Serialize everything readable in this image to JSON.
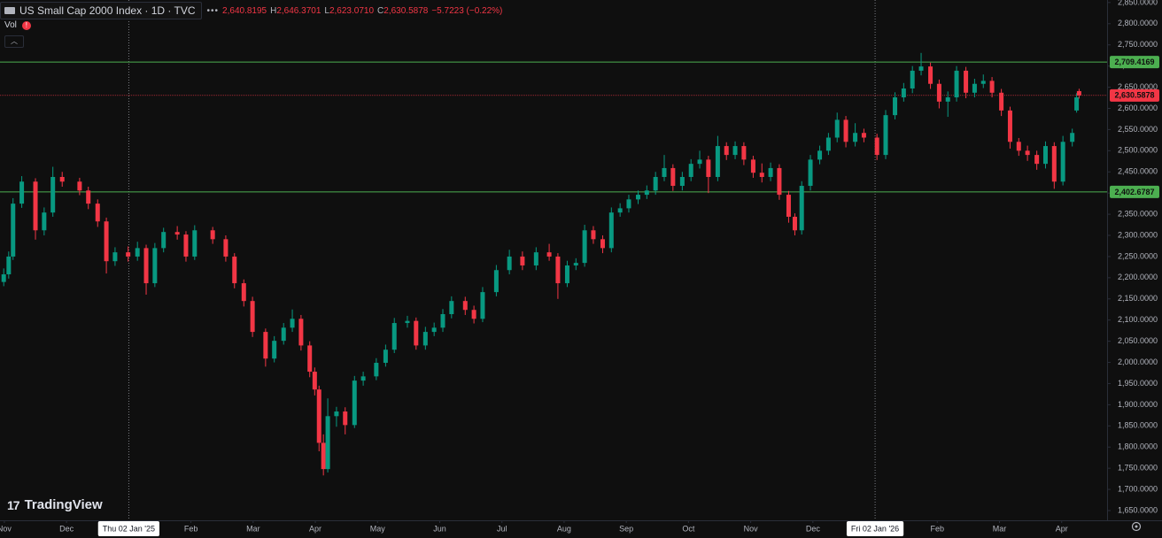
{
  "chart_data": {
    "type": "candlestick",
    "header": {
      "symbol": "US Small Cap 2000 Index · 1D · TVC",
      "ohlc": [
        {
          "value": "2,640.8195"
        },
        {
          "key": "H",
          "value": "2,646.3701"
        },
        {
          "key": "L",
          "value": "2,623.0710"
        },
        {
          "key": "C",
          "value": "2,630.5878"
        }
      ],
      "change": "−5.7223 (−0.22%)",
      "vol": "Vol"
    },
    "branding": "TradingView",
    "up_color": "#089981",
    "down_color": "#f23645",
    "xlim": [
      -0.07,
      17.73
    ],
    "xticks": [
      {
        "value": 0,
        "label": "Nov"
      },
      {
        "value": 1,
        "label": "Dec"
      },
      {
        "value": 2,
        "label": "Thu 02 Jan '25",
        "highlight": true
      },
      {
        "value": 3,
        "label": "Feb"
      },
      {
        "value": 4,
        "label": "Mar"
      },
      {
        "value": 5,
        "label": "Apr"
      },
      {
        "value": 6,
        "label": "May"
      },
      {
        "value": 7,
        "label": "Jun"
      },
      {
        "value": 8,
        "label": "Jul"
      },
      {
        "value": 9,
        "label": "Aug"
      },
      {
        "value": 10,
        "label": "Sep"
      },
      {
        "value": 11,
        "label": "Oct"
      },
      {
        "value": 12,
        "label": "Nov"
      },
      {
        "value": 13,
        "label": "Dec"
      },
      {
        "value": 14,
        "label": "Fri 02 Jan '26",
        "highlight": true
      },
      {
        "value": 15,
        "label": "Feb"
      },
      {
        "value": 16,
        "label": "Mar"
      },
      {
        "value": 17,
        "label": "Apr"
      }
    ],
    "ylim": [
      1627,
      2856
    ],
    "yticks": [
      {
        "value": 1650,
        "label": "1,650.0000"
      },
      {
        "value": 1700,
        "label": "1,700.0000"
      },
      {
        "value": 1750,
        "label": "1,750.0000"
      },
      {
        "value": 1800,
        "label": "1,800.0000"
      },
      {
        "value": 1850,
        "label": "1,850.0000"
      },
      {
        "value": 1900,
        "label": "1,900.0000"
      },
      {
        "value": 1950,
        "label": "1,950.0000"
      },
      {
        "value": 2000,
        "label": "2,000.0000"
      },
      {
        "value": 2050,
        "label": "2,050.0000"
      },
      {
        "value": 2100,
        "label": "2,100.0000"
      },
      {
        "value": 2150,
        "label": "2,150.0000"
      },
      {
        "value": 2200,
        "label": "2,200.0000"
      },
      {
        "value": 2250,
        "label": "2,250.0000"
      },
      {
        "value": 2300,
        "label": "2,300.0000"
      },
      {
        "value": 2350,
        "label": "2,350.0000"
      },
      {
        "value": 2400,
        "label": "2,400.0000"
      },
      {
        "value": 2450,
        "label": "2,450.0000"
      },
      {
        "value": 2500,
        "label": "2,500.0000"
      },
      {
        "value": 2550,
        "label": "2,550.0000"
      },
      {
        "value": 2600,
        "label": "2,600.0000"
      },
      {
        "value": 2650,
        "label": "2,650.0000"
      },
      {
        "value": 2700,
        "label": "2,700.0000"
      },
      {
        "value": 2750,
        "label": "2,750.0000"
      },
      {
        "value": 2800,
        "label": "2,800.0000"
      },
      {
        "value": 2850,
        "label": "2,850.0000"
      }
    ],
    "hlines": [
      {
        "value": 2709.4169,
        "label": "2,709.4169",
        "color": "#4caf50"
      },
      {
        "value": 2402.6787,
        "label": "2,402.6787",
        "color": "#4caf50"
      },
      {
        "value": 2630.5878,
        "label": "2,630.5878",
        "color": "#f23645",
        "dashed": true
      }
    ],
    "x": [
      -0.01,
      0.07,
      0.14,
      0.28,
      0.5,
      0.64,
      0.78,
      0.93,
      1.21,
      1.35,
      1.5,
      1.64,
      1.78,
      1.99,
      2.14,
      2.28,
      2.42,
      2.56,
      2.78,
      2.92,
      3.06,
      3.35,
      3.56,
      3.7,
      3.85,
      3.99,
      4.2,
      4.34,
      4.49,
      4.63,
      4.77,
      4.91,
      4.99,
      5.06,
      5.13,
      5.2,
      5.34,
      5.48,
      5.63,
      5.77,
      5.98,
      6.13,
      6.27,
      6.48,
      6.62,
      6.77,
      6.91,
      7.05,
      7.19,
      7.41,
      7.55,
      7.69,
      7.91,
      8.12,
      8.33,
      8.55,
      8.76,
      8.9,
      9.05,
      9.19,
      9.33,
      9.47,
      9.62,
      9.76,
      9.9,
      10.04,
      10.19,
      10.33,
      10.47,
      10.61,
      10.75,
      10.9,
      11.04,
      11.18,
      11.32,
      11.47,
      11.61,
      11.75,
      11.89,
      12.04,
      12.18,
      12.32,
      12.46,
      12.61,
      12.71,
      12.82,
      12.96,
      13.11,
      13.25,
      13.39,
      13.53,
      13.68,
      13.82,
      14.03,
      14.17,
      14.32,
      14.46,
      14.6,
      14.74,
      14.89,
      15.03,
      15.17,
      15.31,
      15.46,
      15.6,
      15.74,
      15.88,
      16.03,
      16.17,
      16.31,
      16.45,
      16.6,
      16.74,
      16.88,
      17.02,
      17.17,
      17.24,
      17.28
    ],
    "open": [
      2190,
      2208,
      2250,
      2375,
      2427,
      2312,
      2354,
      2438,
      2427,
      2406,
      2375,
      2333,
      2239,
      2260,
      2250,
      2270,
      2187,
      2270,
      2308,
      2302,
      2250,
      2312,
      2291,
      2250,
      2187,
      2145,
      2072,
      2009,
      2051,
      2082,
      2103,
      2040,
      1978,
      1936,
      1810,
      1748,
      1873,
      1884,
      1852,
      1957,
      1967,
      1999,
      2030,
      2093,
      2098,
      2040,
      2072,
      2082,
      2114,
      2145,
      2124,
      2103,
      2166,
      2218,
      2250,
      2229,
      2260,
      2250,
      2187,
      2229,
      2235,
      2312,
      2291,
      2270,
      2354,
      2364,
      2385,
      2396,
      2406,
      2438,
      2459,
      2417,
      2438,
      2469,
      2479,
      2438,
      2511,
      2490,
      2511,
      2479,
      2448,
      2438,
      2459,
      2396,
      2344,
      2312,
      2417,
      2479,
      2500,
      2531,
      2573,
      2521,
      2542,
      2531,
      2490,
      2584,
      2626,
      2647,
      2689,
      2699,
      2658,
      2616,
      2626,
      2689,
      2637,
      2658,
      2665,
      2637,
      2595,
      2521,
      2500,
      2490,
      2469,
      2511,
      2427,
      2521,
      2595,
      2640.8195
    ],
    "high": [
      2222,
      2262,
      2388,
      2440,
      2435,
      2366,
      2462,
      2450,
      2436,
      2415,
      2385,
      2342,
      2272,
      2274,
      2285,
      2278,
      2282,
      2318,
      2322,
      2310,
      2324,
      2320,
      2300,
      2258,
      2196,
      2155,
      2080,
      2062,
      2093,
      2125,
      2112,
      2050,
      1988,
      1945,
      1830,
      1915,
      1895,
      1894,
      1968,
      1978,
      2010,
      2042,
      2105,
      2110,
      2106,
      2084,
      2094,
      2126,
      2156,
      2155,
      2134,
      2178,
      2230,
      2266,
      2262,
      2272,
      2280,
      2258,
      2240,
      2246,
      2325,
      2322,
      2300,
      2366,
      2376,
      2396,
      2406,
      2418,
      2450,
      2490,
      2468,
      2450,
      2480,
      2500,
      2488,
      2535,
      2520,
      2522,
      2520,
      2488,
      2470,
      2472,
      2468,
      2405,
      2352,
      2428,
      2490,
      2512,
      2542,
      2590,
      2582,
      2565,
      2552,
      2540,
      2596,
      2638,
      2660,
      2700,
      2731,
      2708,
      2668,
      2640,
      2700,
      2698,
      2670,
      2680,
      2674,
      2646,
      2604,
      2530,
      2512,
      2500,
      2522,
      2520,
      2535,
      2552,
      2636,
      2646.3701
    ],
    "low": [
      2180,
      2198,
      2242,
      2365,
      2290,
      2300,
      2344,
      2415,
      2395,
      2362,
      2320,
      2210,
      2228,
      2238,
      2240,
      2160,
      2178,
      2260,
      2290,
      2238,
      2242,
      2280,
      2238,
      2175,
      2132,
      2060,
      1990,
      2000,
      2042,
      2072,
      2028,
      1965,
      1922,
      1790,
      1733,
      1740,
      1848,
      1830,
      1845,
      1945,
      1958,
      1990,
      2022,
      2082,
      2030,
      2030,
      2062,
      2072,
      2104,
      2112,
      2092,
      2095,
      2156,
      2208,
      2218,
      2218,
      2240,
      2150,
      2178,
      2218,
      2226,
      2280,
      2258,
      2260,
      2344,
      2354,
      2374,
      2386,
      2396,
      2428,
      2405,
      2406,
      2428,
      2458,
      2400,
      2428,
      2478,
      2480,
      2466,
      2436,
      2425,
      2428,
      2384,
      2330,
      2300,
      2302,
      2406,
      2468,
      2490,
      2520,
      2508,
      2510,
      2520,
      2478,
      2480,
      2574,
      2616,
      2636,
      2678,
      2646,
      2600,
      2580,
      2616,
      2624,
      2626,
      2648,
      2626,
      2582,
      2505,
      2488,
      2476,
      2455,
      2458,
      2410,
      2418,
      2510,
      2590,
      2623.071
    ],
    "close": [
      2208,
      2250,
      2375,
      2427,
      2312,
      2354,
      2438,
      2427,
      2406,
      2375,
      2333,
      2239,
      2260,
      2250,
      2270,
      2187,
      2270,
      2308,
      2302,
      2250,
      2312,
      2291,
      2250,
      2187,
      2145,
      2072,
      2009,
      2051,
      2082,
      2103,
      2040,
      1978,
      1936,
      1810,
      1748,
      1873,
      1884,
      1852,
      1957,
      1967,
      1999,
      2030,
      2093,
      2098,
      2040,
      2072,
      2082,
      2114,
      2145,
      2124,
      2103,
      2166,
      2218,
      2250,
      2229,
      2260,
      2250,
      2187,
      2229,
      2235,
      2312,
      2291,
      2270,
      2354,
      2364,
      2385,
      2396,
      2406,
      2438,
      2459,
      2417,
      2438,
      2469,
      2479,
      2438,
      2511,
      2490,
      2511,
      2479,
      2448,
      2438,
      2459,
      2396,
      2344,
      2312,
      2417,
      2479,
      2500,
      2531,
      2573,
      2521,
      2542,
      2531,
      2490,
      2584,
      2626,
      2647,
      2689,
      2699,
      2658,
      2616,
      2626,
      2689,
      2637,
      2658,
      2665,
      2637,
      2595,
      2521,
      2500,
      2490,
      2469,
      2511,
      2427,
      2521,
      2542,
      2626,
      2630.5878
    ]
  }
}
